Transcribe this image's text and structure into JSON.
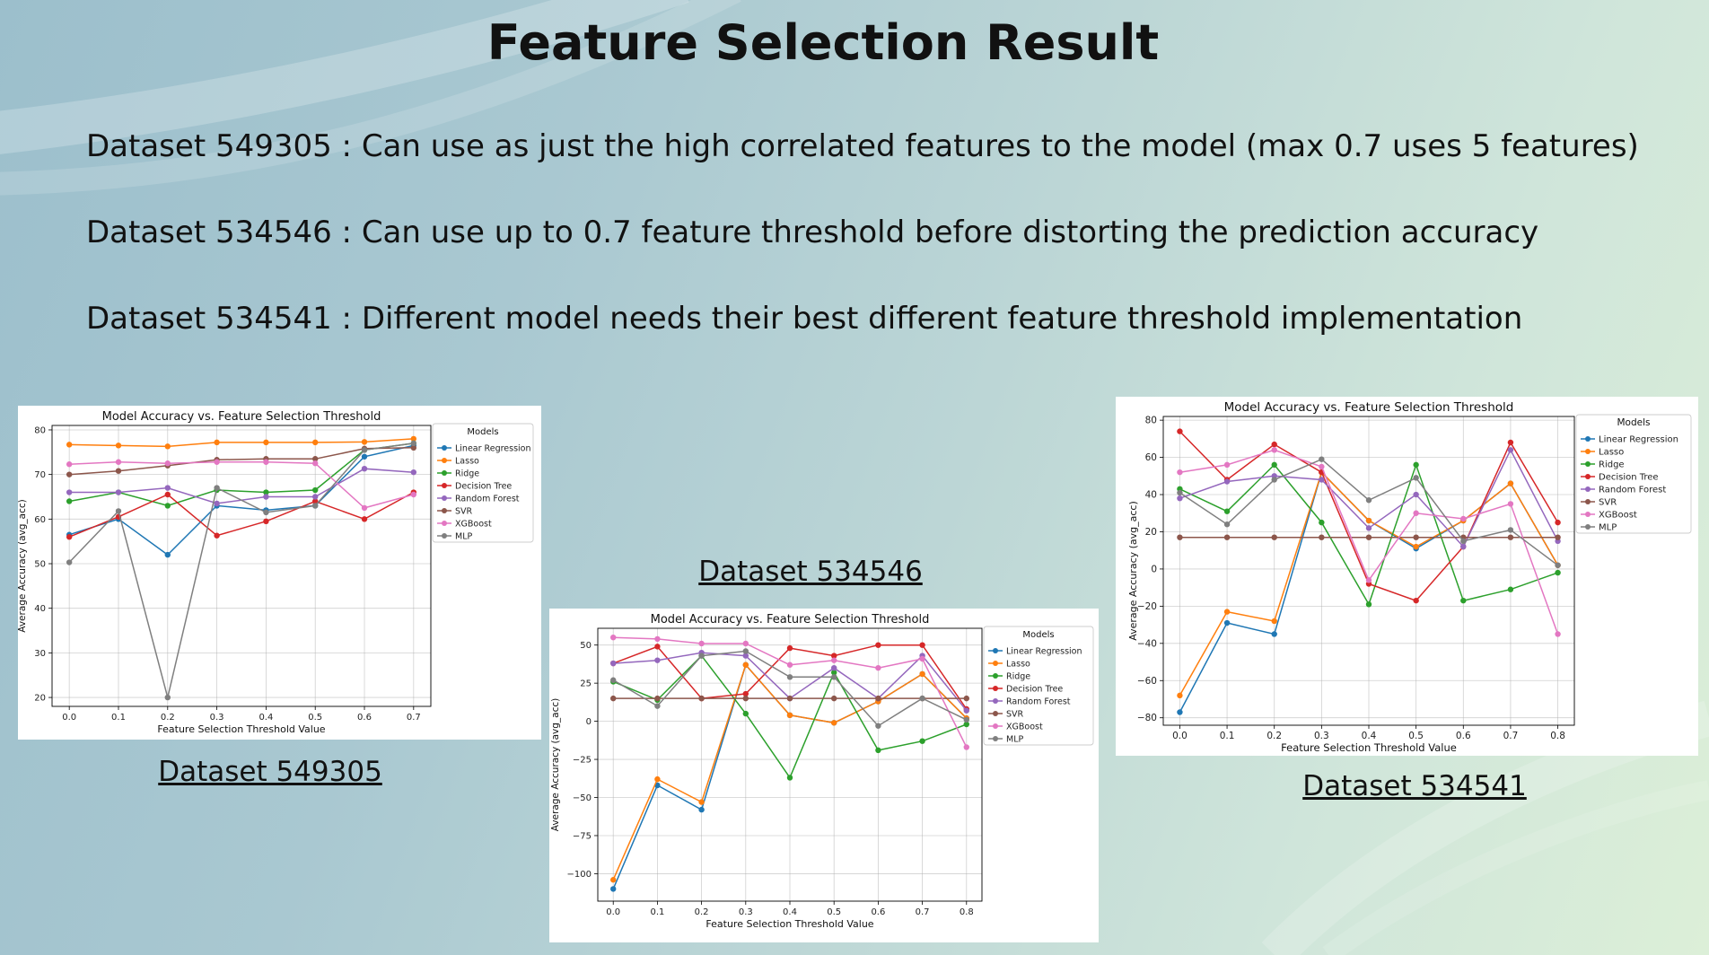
{
  "slide": {
    "title": "Feature Selection Result",
    "bullets": [
      "Dataset 549305 : Can use as just the high correlated features to the model (max 0.7 uses 5 features)",
      "Dataset 534546 : Can use up to 0.7 feature threshold before distorting the prediction accuracy",
      "Dataset 534541 : Different model needs their best different feature threshold implementation"
    ],
    "captions": [
      "Dataset 549305",
      "Dataset 534546",
      "Dataset 534541"
    ]
  },
  "colors": {
    "Linear Regression": "#1f77b4",
    "Lasso": "#ff7f0e",
    "Ridge": "#2ca02c",
    "Decision Tree": "#d62728",
    "Random Forest": "#9467bd",
    "SVR": "#8c564b",
    "XGBoost": "#e377c2",
    "MLP": "#7f7f7f"
  },
  "chart_data": [
    {
      "type": "line",
      "title": "Model Accuracy vs. Feature Selection Threshold",
      "xlabel": "Feature Selection Threshold Value",
      "ylabel": "Average Accuracy (avg_acc)",
      "legend_title": "Models",
      "legend_position": "outside-right-top",
      "grid": true,
      "x": [
        0.0,
        0.1,
        0.2,
        0.3,
        0.4,
        0.5,
        0.6,
        0.7
      ],
      "xticks": [
        "0.0",
        "0.1",
        "0.2",
        "0.3",
        "0.4",
        "0.5",
        "0.6",
        "0.7"
      ],
      "yticks": [
        20,
        30,
        40,
        50,
        60,
        70,
        80
      ],
      "ylim": [
        18,
        81
      ],
      "series": [
        {
          "name": "Linear Regression",
          "values": [
            56.5,
            60,
            52,
            63,
            62,
            63,
            74,
            76.5
          ]
        },
        {
          "name": "Lasso",
          "values": [
            76.7,
            76.5,
            76.3,
            77.2,
            77.2,
            77.2,
            77.3,
            78
          ]
        },
        {
          "name": "Ridge",
          "values": [
            64,
            66,
            63,
            66.5,
            66,
            66.5,
            75.5,
            77
          ]
        },
        {
          "name": "Decision Tree",
          "values": [
            56,
            60.5,
            65.5,
            56.3,
            59.5,
            64,
            60,
            66
          ]
        },
        {
          "name": "Random Forest",
          "values": [
            66,
            66,
            67,
            63.5,
            65,
            65,
            71.3,
            70.5
          ]
        },
        {
          "name": "SVR",
          "values": [
            70,
            70.8,
            72,
            73.3,
            73.5,
            73.5,
            75.8,
            76
          ]
        },
        {
          "name": "XGBoost",
          "values": [
            72.3,
            72.8,
            72.5,
            72.8,
            72.8,
            72.5,
            62.5,
            65.5
          ]
        },
        {
          "name": "MLP",
          "values": [
            50.3,
            61.8,
            20,
            67,
            61.5,
            63,
            75.5,
            77
          ]
        }
      ]
    },
    {
      "type": "line",
      "title": "Model Accuracy vs. Feature Selection Threshold",
      "xlabel": "Feature Selection Threshold Value",
      "ylabel": "Average Accuracy (avg_acc)",
      "legend_title": "Models",
      "legend_position": "outside-right-top",
      "grid": true,
      "x": [
        0.0,
        0.1,
        0.2,
        0.3,
        0.4,
        0.5,
        0.6,
        0.7,
        0.8
      ],
      "xticks": [
        "0.0",
        "0.1",
        "0.2",
        "0.3",
        "0.4",
        "0.5",
        "0.6",
        "0.7",
        "0.8"
      ],
      "yticks": [
        -100,
        -75,
        -50,
        -25,
        0,
        25,
        50
      ],
      "ylim": [
        -118,
        61
      ],
      "series": [
        {
          "name": "Linear Regression",
          "values": [
            -110,
            -42,
            -58,
            37,
            4,
            -1,
            13,
            31,
            2
          ]
        },
        {
          "name": "Lasso",
          "values": [
            -104,
            -38,
            -53,
            37,
            4,
            -1,
            13,
            31,
            2
          ]
        },
        {
          "name": "Ridge",
          "values": [
            26,
            14,
            43,
            5,
            -37,
            32,
            -19,
            -13,
            -2
          ]
        },
        {
          "name": "Decision Tree",
          "values": [
            38,
            49,
            15,
            18,
            48,
            43,
            50,
            50,
            8
          ]
        },
        {
          "name": "Random Forest",
          "values": [
            38,
            40,
            45,
            43,
            15,
            35,
            15,
            43,
            7
          ]
        },
        {
          "name": "SVR",
          "values": [
            15,
            15,
            15,
            15,
            15,
            15,
            15,
            15,
            15
          ]
        },
        {
          "name": "XGBoost",
          "values": [
            55,
            54,
            51,
            51,
            37,
            40,
            35,
            41,
            -17
          ]
        },
        {
          "name": "MLP",
          "values": [
            27,
            10,
            43,
            46,
            29,
            29,
            -3,
            15,
            1
          ]
        }
      ]
    },
    {
      "type": "line",
      "title": "Model Accuracy vs. Feature Selection Threshold",
      "xlabel": "Feature Selection Threshold Value",
      "ylabel": "Average Accuracy (avg_acc)",
      "legend_title": "Models",
      "legend_position": "outside-right-top",
      "grid": true,
      "x": [
        0.0,
        0.1,
        0.2,
        0.3,
        0.4,
        0.5,
        0.6,
        0.7,
        0.8
      ],
      "xticks": [
        "0.0",
        "0.1",
        "0.2",
        "0.3",
        "0.4",
        "0.5",
        "0.6",
        "0.7",
        "0.8"
      ],
      "yticks": [
        -80,
        -60,
        -40,
        -20,
        0,
        20,
        40,
        60,
        80
      ],
      "ylim": [
        -84,
        82
      ],
      "series": [
        {
          "name": "Linear Regression",
          "values": [
            -77,
            -29,
            -35,
            52,
            26,
            11,
            26,
            46,
            2
          ]
        },
        {
          "name": "Lasso",
          "values": [
            -68,
            -23,
            -28,
            52,
            26,
            12,
            26,
            46,
            2
          ]
        },
        {
          "name": "Ridge",
          "values": [
            43,
            31,
            56,
            25,
            -19,
            56,
            -17,
            -11,
            -2
          ]
        },
        {
          "name": "Decision Tree",
          "values": [
            74,
            48,
            67,
            52,
            -8,
            -17,
            12,
            68,
            25
          ]
        },
        {
          "name": "Random Forest",
          "values": [
            38,
            47,
            50,
            48,
            22,
            40,
            12,
            64,
            15
          ]
        },
        {
          "name": "SVR",
          "values": [
            17,
            17,
            17,
            17,
            17,
            17,
            17,
            17,
            17
          ]
        },
        {
          "name": "XGBoost",
          "values": [
            52,
            56,
            64,
            55,
            -6,
            30,
            27,
            35,
            -35
          ]
        },
        {
          "name": "MLP",
          "values": [
            41,
            24,
            48,
            59,
            37,
            49,
            15,
            21,
            2
          ]
        }
      ]
    }
  ]
}
